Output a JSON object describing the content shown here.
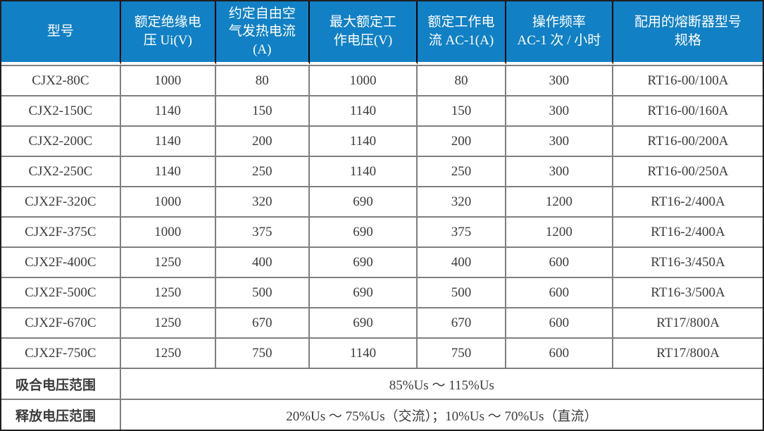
{
  "colors": {
    "header_bg": "#1280c4",
    "header_text": "#ffffff",
    "header_divider": "#000000",
    "grid_border": "#7f7f7f",
    "outer_border": "#1f1f1f",
    "body_text": "#3b3b3b"
  },
  "table": {
    "headers": [
      "型号",
      "额定绝缘电\n压 Ui(V)",
      "约定自由空\n气发热电流\n(A)",
      "最大额定工\n作电压(V)",
      "额定工作电\n流 AC-1(A)",
      "操作频率\nAC-1 次 / 小时",
      "配用的熔断器型号\n规格"
    ],
    "rows": [
      [
        "CJX2-80C",
        "1000",
        "80",
        "1000",
        "80",
        "300",
        "RT16-00/100A"
      ],
      [
        "CJX2-150C",
        "1140",
        "150",
        "1140",
        "150",
        "300",
        "RT16-00/160A"
      ],
      [
        "CJX2-200C",
        "1140",
        "200",
        "1140",
        "200",
        "300",
        "RT16-00/200A"
      ],
      [
        "CJX2-250C",
        "1140",
        "250",
        "1140",
        "250",
        "300",
        "RT16-00/250A"
      ],
      [
        "CJX2F-320C",
        "1000",
        "320",
        "690",
        "320",
        "1200",
        "RT16-2/400A"
      ],
      [
        "CJX2F-375C",
        "1000",
        "375",
        "690",
        "375",
        "1200",
        "RT16-2/400A"
      ],
      [
        "CJX2F-400C",
        "1250",
        "400",
        "690",
        "400",
        "600",
        "RT16-3/450A"
      ],
      [
        "CJX2F-500C",
        "1250",
        "500",
        "690",
        "500",
        "600",
        "RT16-3/500A"
      ],
      [
        "CJX2F-670C",
        "1250",
        "670",
        "690",
        "670",
        "600",
        "RT17/800A"
      ],
      [
        "CJX2F-750C",
        "1250",
        "750",
        "1140",
        "750",
        "600",
        "RT17/800A"
      ]
    ],
    "footer": [
      {
        "label": "吸合电压范围",
        "value": "85%Us ～ 115%Us"
      },
      {
        "label": "释放电压范围",
        "value": "20%Us ～ 75%Us（交流）；10%Us ～ 70%Us（直流）"
      }
    ]
  }
}
